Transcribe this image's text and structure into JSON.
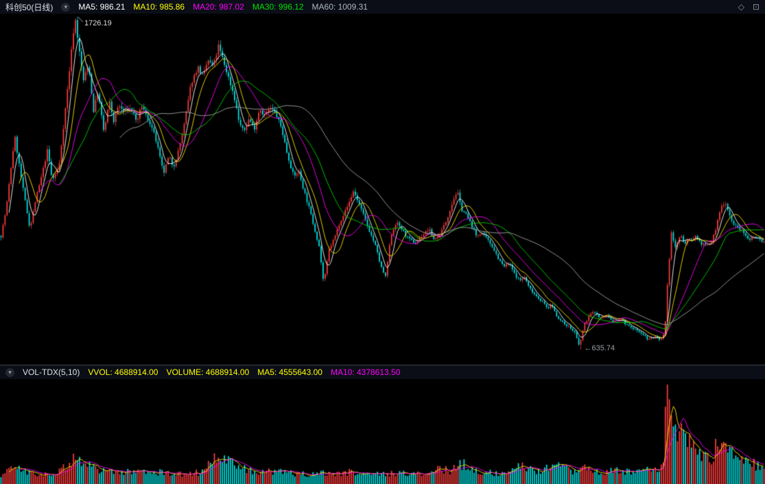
{
  "main_header": {
    "title": "科创50(日线)",
    "icons": {
      "toggle": "▾",
      "diamond": "◇",
      "window": "⊡"
    },
    "legend": [
      {
        "label": "MA5: 986.21",
        "color": "#ffffff"
      },
      {
        "label": "MA10: 985.86",
        "color": "#ffff00"
      },
      {
        "label": "MA20: 987.02",
        "color": "#ff00ff"
      },
      {
        "label": "MA30: 996.12",
        "color": "#00e000"
      },
      {
        "label": "MA60: 1009.31",
        "color": "#b0b8c0"
      }
    ]
  },
  "vol_header": {
    "indicator": "VOL-TDX(5,10)",
    "icons": {
      "toggle": "▾"
    },
    "legend": [
      {
        "label": "VVOL: 4688914.00",
        "color": "#ffff00"
      },
      {
        "label": "VOLUME: 4688914.00",
        "color": "#ffff00"
      },
      {
        "label": "MA5: 4555643.00",
        "color": "#ffff00"
      },
      {
        "label": "MA10: 4378613.50",
        "color": "#ff00ff"
      }
    ]
  },
  "annotations": {
    "high": "1726.19",
    "low": "←635.74"
  },
  "chart_data": {
    "type": "candlestick",
    "title": "科创50(日线)",
    "panels": [
      "price",
      "volume"
    ],
    "legend_position": "top",
    "grid": false,
    "y_axis_visible": false,
    "x_axis_visible": false,
    "candle_count": 380,
    "high": 1726.19,
    "low": 635.74,
    "last_close": 986.21,
    "moving_averages": {
      "MA5": 986.21,
      "MA10": 985.86,
      "MA20": 987.02,
      "MA30": 996.12,
      "MA60": 1009.31
    },
    "volume_readout": {
      "VVOL": 4688914.0,
      "VOLUME": 4688914.0,
      "MA5": 4555643.0,
      "MA10": 4378613.5
    },
    "colors": {
      "up": "#fd3d3d",
      "down": "#00e2e2",
      "ma5": "#ffffff",
      "ma10": "#ffe600",
      "ma20": "#ff00ff",
      "ma30": "#00d800",
      "ma60": "#a8a8a8",
      "vol_ma5": "#ffe600",
      "vol_ma10": "#ff00ff",
      "background": "#000000",
      "header_bg": "#0b0e16"
    },
    "price_anchors": [
      [
        0,
        1008
      ],
      [
        0.007,
        1098
      ],
      [
        0.018,
        1335
      ],
      [
        0.027,
        1189
      ],
      [
        0.038,
        1031
      ],
      [
        0.045,
        1121
      ],
      [
        0.054,
        1211
      ],
      [
        0.061,
        1290
      ],
      [
        0.067,
        1189
      ],
      [
        0.076,
        1234
      ],
      [
        0.085,
        1437
      ],
      [
        0.097,
        1726
      ],
      [
        0.103,
        1606
      ],
      [
        0.108,
        1516
      ],
      [
        0.115,
        1572
      ],
      [
        0.121,
        1414
      ],
      [
        0.127,
        1481
      ],
      [
        0.135,
        1347
      ],
      [
        0.142,
        1448
      ],
      [
        0.148,
        1381
      ],
      [
        0.154,
        1437
      ],
      [
        0.161,
        1414
      ],
      [
        0.17,
        1425
      ],
      [
        0.179,
        1381
      ],
      [
        0.184,
        1437
      ],
      [
        0.19,
        1403
      ],
      [
        0.197,
        1369
      ],
      [
        0.204,
        1313
      ],
      [
        0.213,
        1211
      ],
      [
        0.22,
        1268
      ],
      [
        0.226,
        1234
      ],
      [
        0.233,
        1290
      ],
      [
        0.24,
        1369
      ],
      [
        0.249,
        1505
      ],
      [
        0.258,
        1561
      ],
      [
        0.265,
        1527
      ],
      [
        0.271,
        1584
      ],
      [
        0.278,
        1561
      ],
      [
        0.285,
        1629
      ],
      [
        0.291,
        1584
      ],
      [
        0.298,
        1527
      ],
      [
        0.305,
        1471
      ],
      [
        0.312,
        1381
      ],
      [
        0.318,
        1347
      ],
      [
        0.325,
        1392
      ],
      [
        0.332,
        1358
      ],
      [
        0.339,
        1426
      ],
      [
        0.345,
        1403
      ],
      [
        0.354,
        1426
      ],
      [
        0.361,
        1403
      ],
      [
        0.368,
        1358
      ],
      [
        0.375,
        1279
      ],
      [
        0.384,
        1200
      ],
      [
        0.39,
        1222
      ],
      [
        0.396,
        1166
      ],
      [
        0.404,
        1098
      ],
      [
        0.411,
        1031
      ],
      [
        0.417,
        974
      ],
      [
        0.423,
        850
      ],
      [
        0.43,
        963
      ],
      [
        0.438,
        1008
      ],
      [
        0.444,
        1053
      ],
      [
        0.453,
        1098
      ],
      [
        0.462,
        1155
      ],
      [
        0.468,
        1121
      ],
      [
        0.475,
        1076
      ],
      [
        0.482,
        1031
      ],
      [
        0.491,
        974
      ],
      [
        0.498,
        907
      ],
      [
        0.504,
        873
      ],
      [
        0.511,
        1008
      ],
      [
        0.518,
        1053
      ],
      [
        0.525,
        1031
      ],
      [
        0.534,
        997
      ],
      [
        0.543,
        986
      ],
      [
        0.552,
        1008
      ],
      [
        0.561,
        1031
      ],
      [
        0.567,
        997
      ],
      [
        0.574,
        1008
      ],
      [
        0.583,
        1053
      ],
      [
        0.592,
        1121
      ],
      [
        0.598,
        1155
      ],
      [
        0.603,
        1098
      ],
      [
        0.61,
        1076
      ],
      [
        0.617,
        1042
      ],
      [
        0.623,
        1008
      ],
      [
        0.63,
        1019
      ],
      [
        0.637,
        997
      ],
      [
        0.644,
        974
      ],
      [
        0.653,
        929
      ],
      [
        0.659,
        907
      ],
      [
        0.666,
        918
      ],
      [
        0.673,
        884
      ],
      [
        0.68,
        861
      ],
      [
        0.686,
        873
      ],
      [
        0.692,
        839
      ],
      [
        0.7,
        816
      ],
      [
        0.709,
        794
      ],
      [
        0.716,
        771
      ],
      [
        0.722,
        782
      ],
      [
        0.728,
        748
      ],
      [
        0.735,
        726
      ],
      [
        0.743,
        714
      ],
      [
        0.752,
        692
      ],
      [
        0.758,
        645
      ],
      [
        0.764,
        714
      ],
      [
        0.771,
        748
      ],
      [
        0.778,
        760
      ],
      [
        0.785,
        737
      ],
      [
        0.794,
        748
      ],
      [
        0.803,
        726
      ],
      [
        0.812,
        737
      ],
      [
        0.821,
        714
      ],
      [
        0.83,
        703
      ],
      [
        0.839,
        692
      ],
      [
        0.848,
        669
      ],
      [
        0.857,
        680
      ],
      [
        0.864,
        662
      ],
      [
        0.87,
        692
      ],
      [
        0.874,
        873
      ],
      [
        0.879,
        1031
      ],
      [
        0.883,
        963
      ],
      [
        0.89,
        1008
      ],
      [
        0.897,
        986
      ],
      [
        0.904,
        997
      ],
      [
        0.91,
        1008
      ],
      [
        0.917,
        986
      ],
      [
        0.924,
        974
      ],
      [
        0.931,
        986
      ],
      [
        0.937,
        1031
      ],
      [
        0.943,
        1098
      ],
      [
        0.949,
        1121
      ],
      [
        0.955,
        1076
      ],
      [
        0.961,
        1042
      ],
      [
        0.969,
        1031
      ],
      [
        0.976,
        1008
      ],
      [
        0.982,
        997
      ],
      [
        0.988,
        1008
      ],
      [
        1,
        986
      ]
    ],
    "volume_profile": [
      [
        0,
        0.1
      ],
      [
        0.02,
        0.17
      ],
      [
        0.04,
        0.12
      ],
      [
        0.06,
        0.1
      ],
      [
        0.08,
        0.15
      ],
      [
        0.095,
        0.27
      ],
      [
        0.11,
        0.22
      ],
      [
        0.13,
        0.15
      ],
      [
        0.16,
        0.12
      ],
      [
        0.19,
        0.14
      ],
      [
        0.21,
        0.12
      ],
      [
        0.23,
        0.1
      ],
      [
        0.26,
        0.12
      ],
      [
        0.285,
        0.3
      ],
      [
        0.3,
        0.22
      ],
      [
        0.32,
        0.15
      ],
      [
        0.34,
        0.12
      ],
      [
        0.36,
        0.13
      ],
      [
        0.38,
        0.11
      ],
      [
        0.4,
        0.1
      ],
      [
        0.42,
        0.12
      ],
      [
        0.44,
        0.1
      ],
      [
        0.46,
        0.13
      ],
      [
        0.48,
        0.11
      ],
      [
        0.5,
        0.1
      ],
      [
        0.52,
        0.12
      ],
      [
        0.54,
        0.1
      ],
      [
        0.56,
        0.11
      ],
      [
        0.575,
        0.16
      ],
      [
        0.59,
        0.13
      ],
      [
        0.6,
        0.22
      ],
      [
        0.615,
        0.18
      ],
      [
        0.63,
        0.12
      ],
      [
        0.65,
        0.11
      ],
      [
        0.67,
        0.13
      ],
      [
        0.685,
        0.2
      ],
      [
        0.7,
        0.14
      ],
      [
        0.72,
        0.16
      ],
      [
        0.735,
        0.22
      ],
      [
        0.75,
        0.14
      ],
      [
        0.765,
        0.18
      ],
      [
        0.78,
        0.12
      ],
      [
        0.8,
        0.14
      ],
      [
        0.815,
        0.13
      ],
      [
        0.83,
        0.12
      ],
      [
        0.845,
        0.16
      ],
      [
        0.86,
        0.13
      ],
      [
        0.868,
        0.2
      ],
      [
        0.871,
        1.0
      ],
      [
        0.878,
        0.72
      ],
      [
        0.885,
        0.58
      ],
      [
        0.893,
        0.52
      ],
      [
        0.9,
        0.46
      ],
      [
        0.91,
        0.34
      ],
      [
        0.92,
        0.29
      ],
      [
        0.93,
        0.24
      ],
      [
        0.94,
        0.42
      ],
      [
        0.948,
        0.5
      ],
      [
        0.955,
        0.38
      ],
      [
        0.965,
        0.28
      ],
      [
        0.975,
        0.24
      ],
      [
        0.985,
        0.21
      ],
      [
        1,
        0.17
      ]
    ]
  }
}
